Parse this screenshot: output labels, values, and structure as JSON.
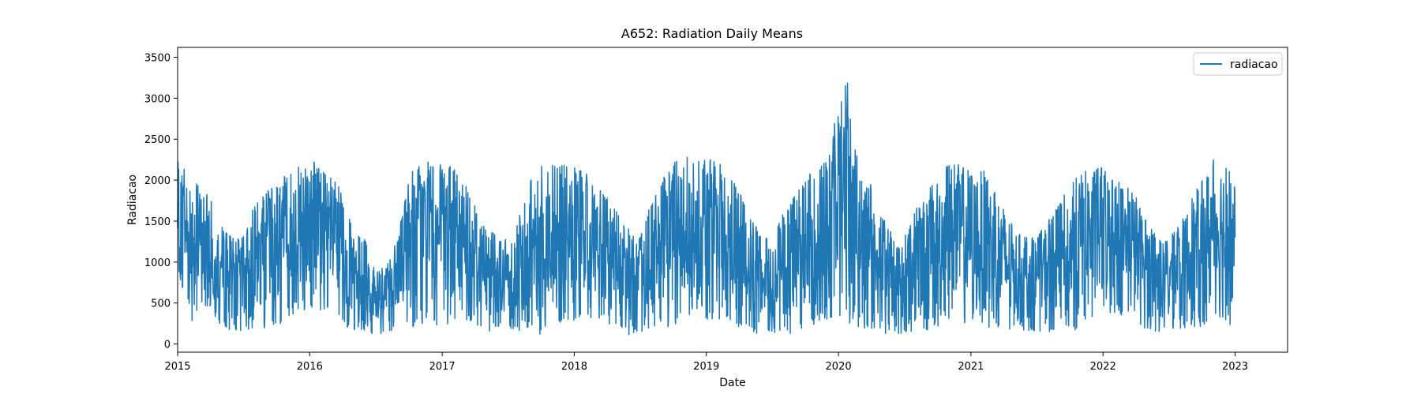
{
  "chart_data": {
    "type": "line",
    "title": "A652: Radiation Daily Means",
    "xlabel": "Date",
    "ylabel": "Radiacao",
    "x_axis_kind": "date",
    "xlim": [
      "2015-01-01",
      "2023-05-26"
    ],
    "ylim": [
      -100,
      3620
    ],
    "x_ticks": [
      "2015",
      "2016",
      "2017",
      "2018",
      "2019",
      "2020",
      "2021",
      "2022",
      "2023"
    ],
    "y_ticks": [
      0,
      500,
      1000,
      1500,
      2000,
      2500,
      3000,
      3500
    ],
    "grid": false,
    "legend": {
      "position": "top-right",
      "entries": [
        "radiacao"
      ]
    },
    "colors": {
      "series": "#1f77b4",
      "axes": "#000000",
      "background": "#ffffff"
    },
    "series": [
      {
        "name": "radiacao",
        "seasonal_envelope": {
          "x": [
            "2015-01-01",
            "2015-02-01",
            "2015-03-01",
            "2015-04-01",
            "2015-05-01",
            "2015-06-01",
            "2015-07-01",
            "2015-08-01",
            "2015-09-01",
            "2015-10-01",
            "2015-11-01",
            "2015-12-01",
            "2016-01-01",
            "2016-02-01",
            "2016-03-01",
            "2016-04-01",
            "2016-05-01",
            "2016-06-01",
            "2016-07-01",
            "2016-08-01",
            "2016-09-01",
            "2016-10-01",
            "2016-11-01",
            "2016-12-01",
            "2017-01-01",
            "2017-02-01",
            "2017-03-01",
            "2017-04-01",
            "2017-05-01",
            "2017-06-01",
            "2017-07-01",
            "2017-08-01",
            "2017-09-01",
            "2017-10-01",
            "2017-11-01",
            "2017-12-01",
            "2018-01-01",
            "2018-02-01",
            "2018-03-01",
            "2018-04-01",
            "2018-05-01",
            "2018-06-01",
            "2018-07-01",
            "2018-08-01",
            "2018-09-01",
            "2018-10-01",
            "2018-11-01",
            "2018-12-01",
            "2019-01-01",
            "2019-02-01",
            "2019-03-01",
            "2019-04-01",
            "2019-05-01",
            "2019-06-01",
            "2019-07-01",
            "2019-08-01",
            "2019-09-01",
            "2019-10-01",
            "2019-11-01",
            "2019-12-01",
            "2020-01-01",
            "2020-02-01",
            "2020-03-01",
            "2020-04-01",
            "2020-05-01",
            "2020-06-01",
            "2020-07-01",
            "2020-08-01",
            "2020-09-01",
            "2020-10-01",
            "2020-11-01",
            "2020-12-01",
            "2021-01-01",
            "2021-02-01",
            "2021-03-01",
            "2021-04-01",
            "2021-05-01",
            "2021-06-01",
            "2021-07-01",
            "2021-08-01",
            "2021-09-01",
            "2021-10-01",
            "2021-11-01",
            "2021-12-01",
            "2022-01-01",
            "2022-02-01",
            "2022-03-01",
            "2022-04-01",
            "2022-05-01",
            "2022-06-01",
            "2022-07-01",
            "2022-08-01",
            "2022-09-01",
            "2022-10-01",
            "2022-11-01",
            "2022-12-01",
            "2023-01-01"
          ],
          "max": [
            2240,
            2100,
            1950,
            1800,
            1450,
            1300,
            1300,
            1700,
            1850,
            1950,
            2100,
            2200,
            2280,
            2200,
            2050,
            1850,
            1350,
            1300,
            900,
            950,
            1300,
            2050,
            2330,
            2200,
            2200,
            2150,
            2000,
            1800,
            1500,
            1300,
            1300,
            1600,
            2000,
            2200,
            2250,
            2200,
            2150,
            2100,
            2000,
            1800,
            1600,
            1400,
            1300,
            1750,
            2000,
            2250,
            2300,
            2250,
            2320,
            2250,
            2050,
            1900,
            1600,
            1300,
            1300,
            1600,
            1800,
            2000,
            2200,
            2250,
            2980,
            3440,
            2000,
            1950,
            1600,
            1300,
            1300,
            1650,
            1850,
            2050,
            2200,
            2200,
            2150,
            2150,
            1950,
            1700,
            1400,
            1300,
            1300,
            1500,
            1700,
            1950,
            2100,
            2150,
            2180,
            2000,
            1950,
            1850,
            1500,
            1300,
            1300,
            1450,
            1750,
            2000,
            2250,
            2250,
            1950
          ],
          "min": [
            900,
            250,
            350,
            450,
            200,
            150,
            150,
            200,
            150,
            200,
            300,
            350,
            450,
            400,
            350,
            250,
            150,
            150,
            100,
            150,
            150,
            200,
            150,
            300,
            150,
            300,
            300,
            250,
            100,
            200,
            200,
            150,
            200,
            100,
            250,
            250,
            250,
            300,
            300,
            250,
            200,
            100,
            150,
            150,
            150,
            200,
            350,
            300,
            300,
            300,
            300,
            200,
            150,
            100,
            150,
            100,
            150,
            200,
            250,
            300,
            300,
            250,
            150,
            150,
            100,
            150,
            100,
            150,
            100,
            200,
            250,
            200,
            300,
            250,
            150,
            200,
            150,
            150,
            150,
            150,
            150,
            150,
            200,
            300,
            400,
            300,
            300,
            250,
            150,
            150,
            150,
            150,
            200,
            200,
            300,
            250,
            200
          ]
        }
      }
    ]
  }
}
